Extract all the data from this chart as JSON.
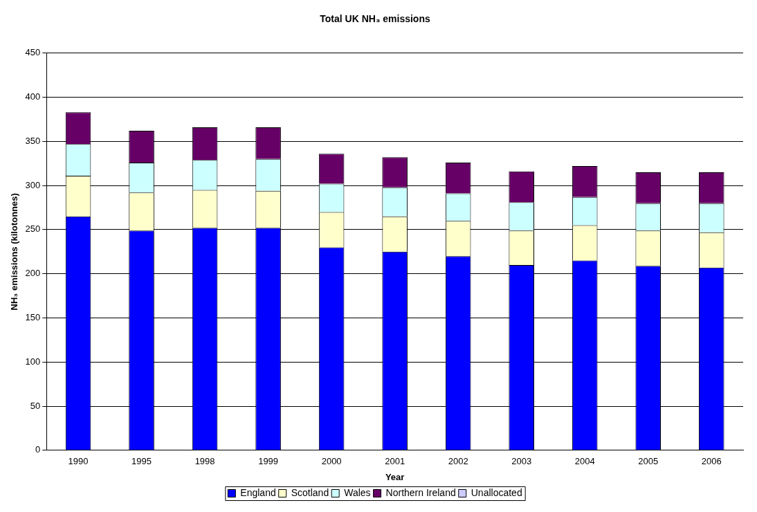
{
  "chart_data": {
    "type": "bar",
    "title": "Total UK NH₃ emissions",
    "xlabel": "Year",
    "ylabel": "NH₃ emissions (kilotonnes)",
    "categories": [
      "1990",
      "1995",
      "1998",
      "1999",
      "2000",
      "2001",
      "2002",
      "2003",
      "2004",
      "2005",
      "2006"
    ],
    "stacked": true,
    "series": [
      {
        "name": "England",
        "color": "#0000ff",
        "values": [
          265,
          249,
          252,
          252,
          230,
          225,
          220,
          210,
          215,
          209,
          207
        ]
      },
      {
        "name": "Scotland",
        "color": "#ffffcc",
        "values": [
          46,
          43,
          43,
          42,
          40,
          40,
          40,
          39,
          40,
          40,
          40
        ]
      },
      {
        "name": "Wales",
        "color": "#ccffff",
        "values": [
          36,
          34,
          34,
          36,
          32,
          33,
          31,
          32,
          32,
          31,
          33
        ]
      },
      {
        "name": "Northern Ireland",
        "color": "#660066",
        "values": [
          36,
          36,
          37,
          36,
          34,
          34,
          35,
          35,
          35,
          35,
          35
        ]
      },
      {
        "name": "Unallocated",
        "color": "#ccccff",
        "values": [
          0,
          0,
          0,
          0,
          0,
          0,
          0,
          0,
          0,
          0,
          0
        ]
      }
    ],
    "ylim": [
      0,
      450
    ],
    "yticks": [
      0,
      50,
      100,
      150,
      200,
      250,
      300,
      350,
      400,
      450
    ],
    "grid": "y",
    "legend": "bottom"
  }
}
